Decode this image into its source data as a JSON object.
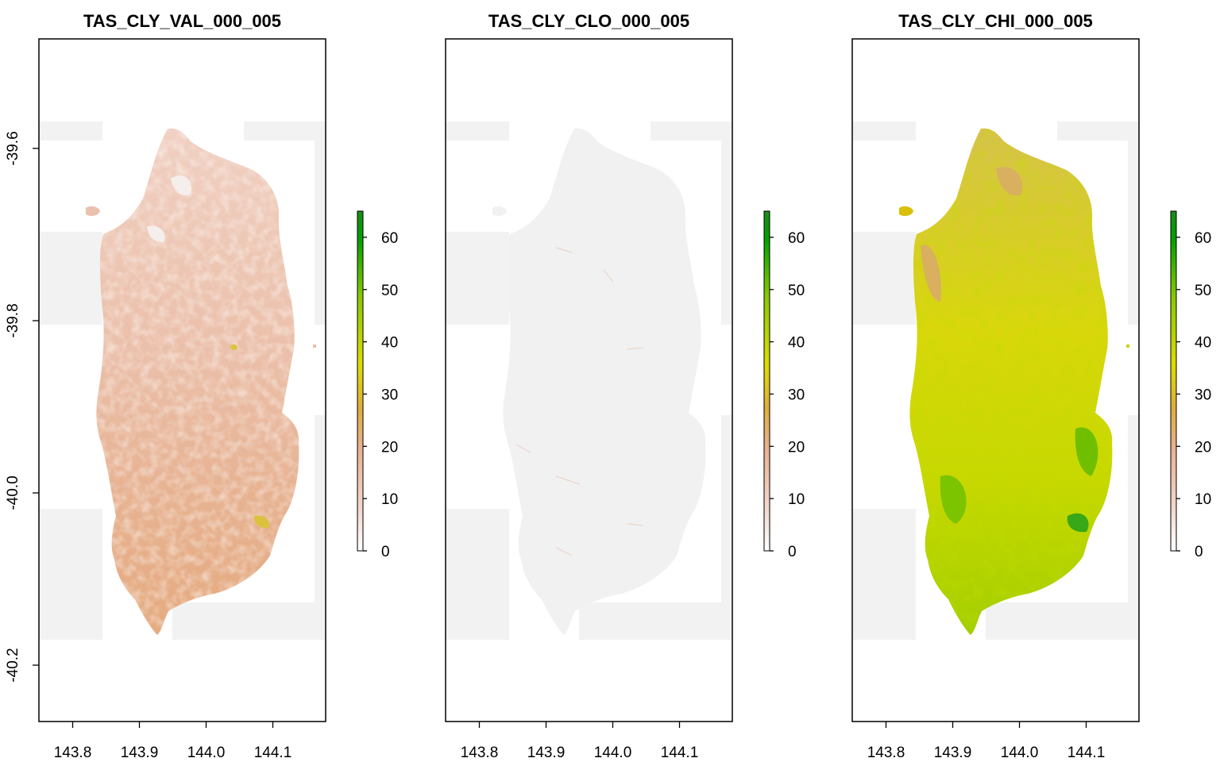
{
  "figure": {
    "panels": [
      {
        "id": "val",
        "title": "TAS_CLY_VAL_000_005",
        "style": "val",
        "show_y_axis": true
      },
      {
        "id": "clo",
        "title": "TAS_CLY_CLO_000_005",
        "style": "clo",
        "show_y_axis": false
      },
      {
        "id": "chi",
        "title": "TAS_CLY_CHI_000_005",
        "style": "chi",
        "show_y_axis": false
      }
    ],
    "x_ticks": [
      "143.8",
      "143.9",
      "144.0",
      "144.1"
    ],
    "x_tick_values": [
      143.8,
      143.9,
      144.0,
      144.1
    ],
    "y_ticks": [
      "-39.6",
      "-39.8",
      "-40.0",
      "-40.2"
    ],
    "y_tick_values": [
      -39.6,
      -39.8,
      -40.0,
      -40.2
    ],
    "legend_ticks": [
      "0",
      "10",
      "20",
      "30",
      "40",
      "50",
      "60"
    ],
    "legend_tick_values": [
      0,
      10,
      20,
      30,
      40,
      50,
      60
    ],
    "legend_range": [
      0,
      65
    ],
    "legend_colors": [
      "#ffffff",
      "#f2d9cf",
      "#ebb192",
      "#e0ad3c",
      "#dddd00",
      "#88c800",
      "#00a000",
      "#1c8c1c"
    ],
    "na_tile_color": "#f2f2f2"
  }
}
